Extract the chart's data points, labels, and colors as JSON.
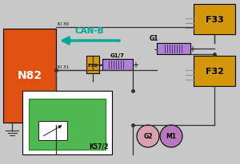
{
  "bg_color": "#c8c8c8",
  "n82_color": "#e05010",
  "f33_color": "#d4960a",
  "f32_color": "#d4960a",
  "f30_color": "#d4960a",
  "g1_color": "#b080d8",
  "g17_color": "#b080d8",
  "k572_outer": "#ffffff",
  "k572_inner": "#50b850",
  "g2_color": "#d8a0b0",
  "m1_color": "#b878c0",
  "canb_color": "#00a898",
  "wire_color": "#303030",
  "gray_wire": "#909090",
  "n82_label": "N82",
  "f33_label": "F33",
  "f32_label": "F32",
  "f30_label": "F30",
  "g1_label": "G1",
  "g17_label": "G1/7",
  "k572_label": "K57/2",
  "g2_label": "G2",
  "m1_label": "M1",
  "canb_label": "CAN-B",
  "ki30_label": "KI 30",
  "ki31_label": "KI 31"
}
